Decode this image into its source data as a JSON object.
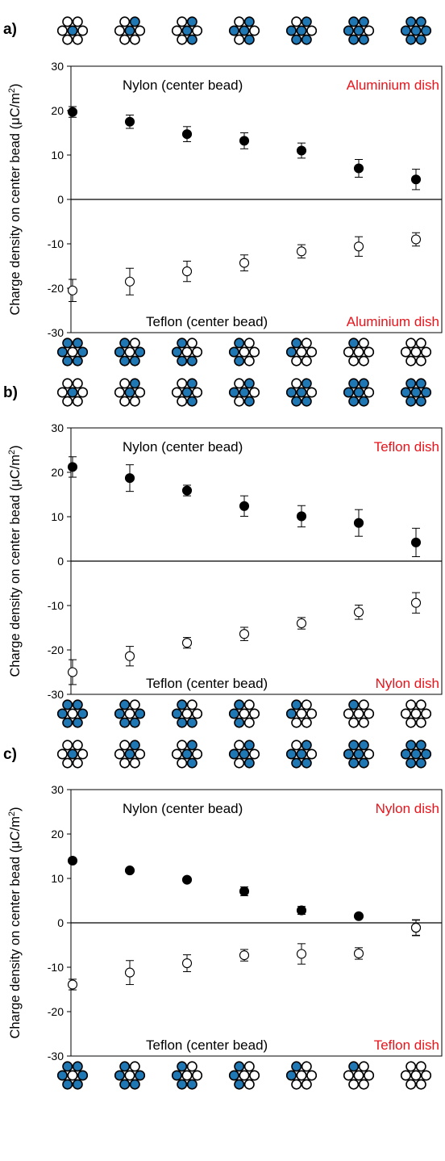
{
  "figure": {
    "ylabel": "Charge density on center bead (μC/m²)",
    "ylabel_pre": "Charge density on center bead (μC/m",
    "ylabel_sup": "2",
    "ylabel_post": ")"
  },
  "chart_data": [
    {
      "type": "scatter",
      "panel_label": "a)",
      "ylabel": "Charge density on center bead (μC/m²)",
      "ylim": [
        -30,
        30
      ],
      "yticks": [
        -30,
        -20,
        -10,
        0,
        10,
        20,
        30
      ],
      "annotations": {
        "top_left": "Nylon (center bead)",
        "top_right": "Aluminium dish",
        "bottom_left": "Teflon (center bead)",
        "bottom_right": "Aluminium dish"
      },
      "top_bead_pattern_blue_counts": [
        1,
        2,
        3,
        4,
        5,
        6,
        7
      ],
      "bottom_bead_pattern_blue_counts": [
        6,
        5,
        4,
        3,
        2,
        1,
        0
      ],
      "series": [
        {
          "name": "Nylon (center bead)",
          "marker": "filled",
          "values": [
            19.7,
            17.5,
            14.7,
            13.2,
            11.0,
            7.0,
            4.5
          ],
          "errors": [
            1.2,
            1.5,
            1.7,
            1.8,
            1.7,
            2.0,
            2.3
          ]
        },
        {
          "name": "Teflon (center bead)",
          "marker": "open",
          "values": [
            -20.5,
            -18.5,
            -16.2,
            -14.3,
            -11.7,
            -10.6,
            -9.0
          ],
          "errors": [
            2.5,
            3.0,
            2.3,
            1.8,
            1.5,
            2.2,
            1.5
          ]
        }
      ]
    },
    {
      "type": "scatter",
      "panel_label": "b)",
      "ylabel": "Charge density on center bead (μC/m²)",
      "ylim": [
        -30,
        30
      ],
      "yticks": [
        -30,
        -20,
        -10,
        0,
        10,
        20,
        30
      ],
      "annotations": {
        "top_left": "Nylon (center bead)",
        "top_right": "Teflon dish",
        "bottom_left": "Teflon (center bead)",
        "bottom_right": "Nylon dish"
      },
      "top_bead_pattern_blue_counts": [
        1,
        2,
        3,
        4,
        5,
        6,
        7
      ],
      "bottom_bead_pattern_blue_counts": [
        6,
        5,
        4,
        3,
        2,
        1,
        0
      ],
      "series": [
        {
          "name": "Nylon (center bead)",
          "marker": "filled",
          "values": [
            21.2,
            18.7,
            15.9,
            12.4,
            10.1,
            8.6,
            4.2
          ],
          "errors": [
            2.3,
            3.0,
            1.2,
            2.3,
            2.4,
            3.0,
            3.2
          ]
        },
        {
          "name": "Teflon (center bead)",
          "marker": "open",
          "values": [
            -25.0,
            -21.4,
            -18.4,
            -16.4,
            -14.0,
            -11.5,
            -9.4
          ],
          "errors": [
            2.8,
            2.2,
            1.2,
            1.5,
            1.3,
            1.6,
            2.3
          ]
        }
      ]
    },
    {
      "type": "scatter",
      "panel_label": "c)",
      "ylabel": "Charge density on center bead (μC/m²)",
      "ylim": [
        -30,
        30
      ],
      "yticks": [
        -30,
        -20,
        -10,
        0,
        10,
        20,
        30
      ],
      "annotations": {
        "top_left": "Nylon (center bead)",
        "top_right": "Nylon dish",
        "bottom_left": "Teflon (center bead)",
        "bottom_right": "Teflon dish"
      },
      "top_bead_pattern_blue_counts": [
        1,
        2,
        3,
        4,
        5,
        6,
        7
      ],
      "bottom_bead_pattern_blue_counts": [
        6,
        5,
        4,
        3,
        2,
        1,
        0
      ],
      "series": [
        {
          "name": "Nylon (center bead)",
          "marker": "filled",
          "values": [
            14.0,
            11.8,
            9.7,
            7.1,
            2.8,
            1.5,
            -1.1
          ],
          "errors": [
            0.4,
            0.4,
            0.5,
            1.0,
            0.9,
            0.4,
            1.7
          ]
        },
        {
          "name": "Teflon (center bead)",
          "marker": "open",
          "values": [
            -13.9,
            -11.2,
            -9.1,
            -7.3,
            -7.0,
            -6.9,
            -1.1
          ],
          "errors": [
            1.2,
            2.7,
            1.9,
            1.3,
            2.3,
            1.3,
            1.8
          ]
        }
      ]
    }
  ],
  "colors": {
    "bead_blue": "#1f77b4",
    "bead_outline": "#000000",
    "annotation_red": "#e8141b",
    "text": "#000000"
  }
}
